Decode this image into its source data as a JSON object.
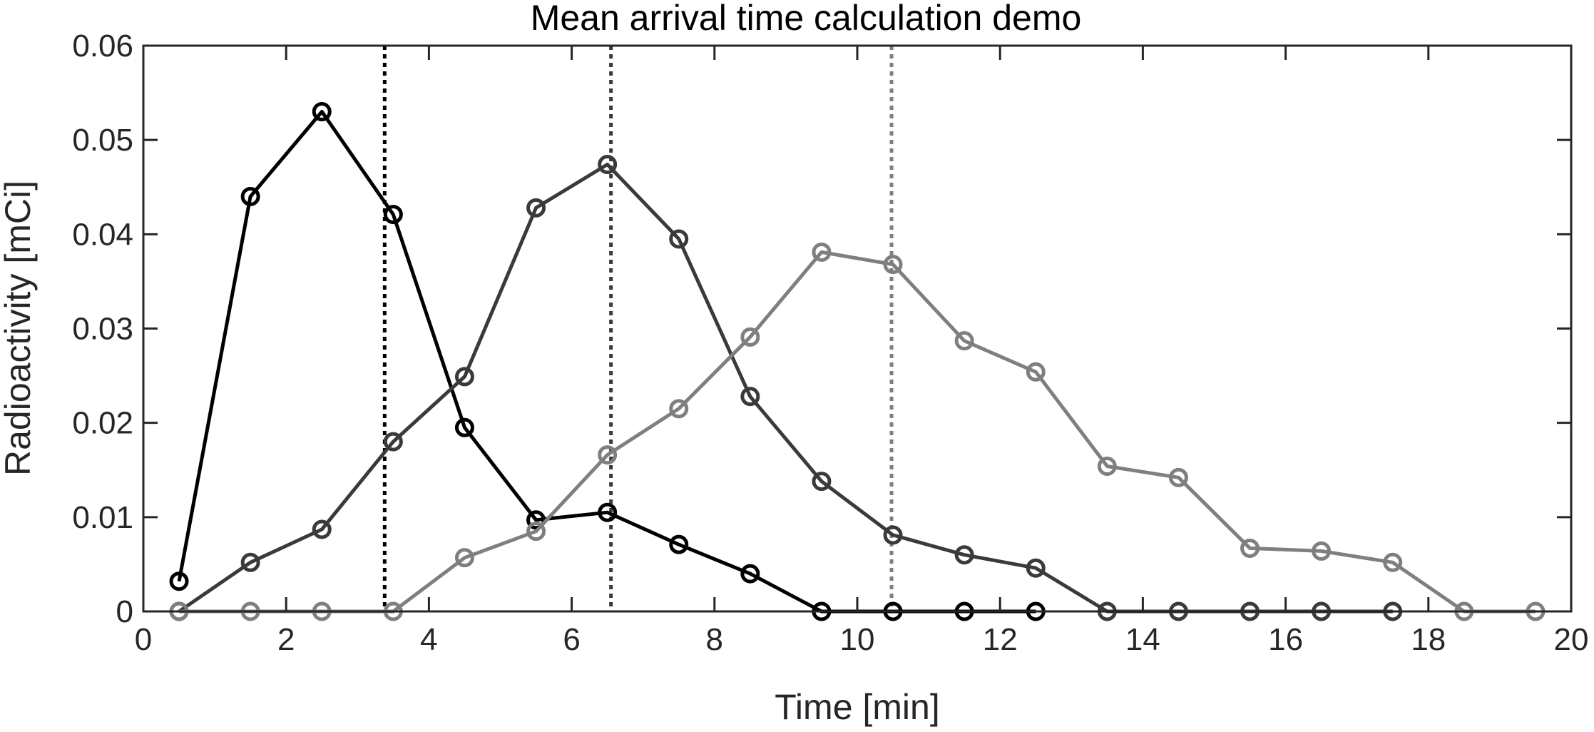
{
  "chart_data": {
    "type": "line",
    "title": "Mean arrival time calculation demo",
    "xlabel": "Time [min]",
    "ylabel": "Radioactivity [mCi]",
    "xlim": [
      0,
      20
    ],
    "ylim": [
      0,
      0.06
    ],
    "xticks": [
      0,
      2,
      4,
      6,
      8,
      10,
      12,
      14,
      16,
      18,
      20
    ],
    "yticks": [
      0,
      0.01,
      0.02,
      0.03,
      0.04,
      0.05,
      0.06
    ],
    "xtick_labels": [
      "0",
      "2",
      "4",
      "6",
      "8",
      "10",
      "12",
      "14",
      "16",
      "18",
      "20"
    ],
    "ytick_labels": [
      "0",
      "0.01",
      "0.02",
      "0.03",
      "0.04",
      "0.05",
      "0.06"
    ],
    "grid": false,
    "marker": "circle",
    "x": [
      0.5,
      1.5,
      2.5,
      3.5,
      4.5,
      5.5,
      6.5,
      7.5,
      8.5,
      9.5,
      10.5,
      11.5,
      12.5,
      13.5,
      14.5,
      15.5,
      16.5,
      17.5,
      18.5,
      19.5
    ],
    "series": [
      {
        "color": "#000000",
        "values": [
          0.0032,
          0.044,
          0.053,
          0.0421,
          0.0195,
          0.0097,
          0.0105,
          0.0071,
          0.004,
          0,
          0,
          0,
          0,
          null,
          null,
          null,
          null,
          null,
          null,
          null
        ],
        "mean_arrival_time": 3.38
      },
      {
        "color": "#3a3a3a",
        "values": [
          0,
          0.0052,
          0.0087,
          0.018,
          0.0249,
          0.0428,
          0.0474,
          0.0395,
          0.0228,
          0.0138,
          0.0081,
          0.006,
          0.0046,
          0,
          0,
          0,
          0,
          0,
          null,
          null
        ],
        "mean_arrival_time": 6.55
      },
      {
        "color": "#7f7f7f",
        "values": [
          0,
          0,
          0,
          0,
          0.0057,
          0.0085,
          0.0166,
          0.0215,
          0.0291,
          0.0381,
          0.0368,
          0.0287,
          0.0254,
          0.0154,
          0.0142,
          0.0067,
          0.0064,
          0.0052,
          0,
          0
        ],
        "mean_arrival_time": 10.48
      }
    ]
  }
}
